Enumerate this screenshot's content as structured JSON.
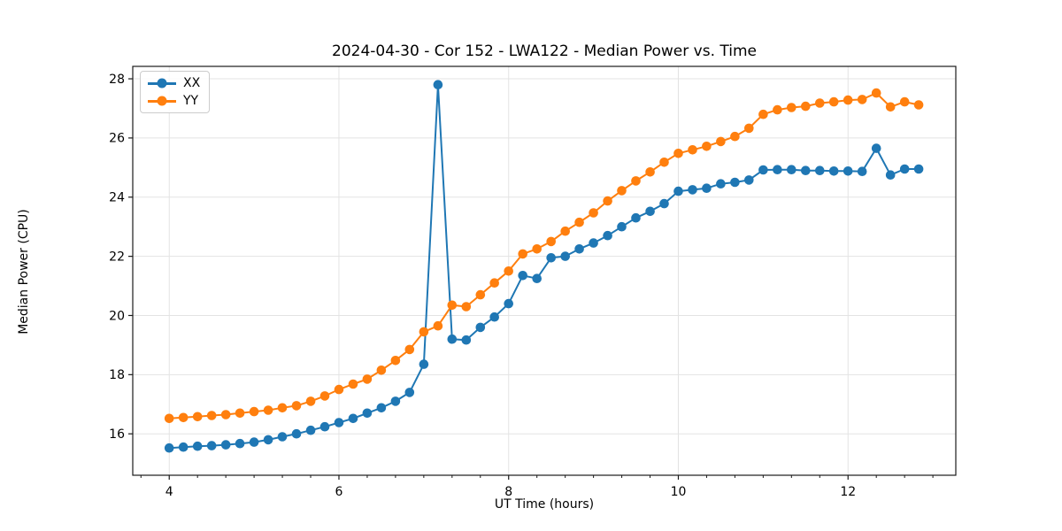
{
  "chart": {
    "title": "2024-04-30 - Cor 152 - LWA122 - Median Power vs. Time",
    "xlabel": "UT Time (hours)",
    "ylabel": "Median Power (CPU)"
  },
  "chart_data": {
    "type": "line",
    "title": "2024-04-30 - Cor 152 - LWA122 - Median Power vs. Time",
    "xlabel": "UT Time (hours)",
    "ylabel": "Median Power (CPU)",
    "xlim": [
      3.57,
      13.27
    ],
    "ylim": [
      14.6,
      28.42
    ],
    "x_ticks": [
      4,
      6,
      8,
      10,
      12
    ],
    "y_ticks": [
      16,
      18,
      20,
      22,
      24,
      26,
      28
    ],
    "x_minor_tick_step": 0.3333,
    "grid": true,
    "grid_color": "#e3e3e3",
    "axis_color": "#1a1a1a",
    "legend_position": "upper left",
    "marker": "o",
    "x": [
      4.0,
      4.167,
      4.333,
      4.5,
      4.667,
      4.833,
      5.0,
      5.167,
      5.333,
      5.5,
      5.667,
      5.833,
      6.0,
      6.167,
      6.333,
      6.5,
      6.667,
      6.833,
      7.0,
      7.167,
      7.333,
      7.5,
      7.667,
      7.833,
      8.0,
      8.167,
      8.333,
      8.5,
      8.667,
      8.833,
      9.0,
      9.167,
      9.333,
      9.5,
      9.667,
      9.833,
      10.0,
      10.167,
      10.333,
      10.5,
      10.667,
      10.833,
      11.0,
      11.167,
      11.333,
      11.5,
      11.667,
      11.833,
      12.0,
      12.167,
      12.333,
      12.5,
      12.667,
      12.833
    ],
    "series": [
      {
        "name": "XX",
        "color": "#1f77b4",
        "values": [
          15.52,
          15.55,
          15.58,
          15.6,
          15.63,
          15.67,
          15.72,
          15.8,
          15.9,
          16.0,
          16.12,
          16.24,
          16.38,
          16.52,
          16.7,
          16.88,
          17.1,
          17.4,
          18.35,
          27.8,
          19.2,
          19.17,
          19.6,
          19.95,
          20.4,
          21.35,
          21.25,
          21.95,
          22.0,
          22.25,
          22.45,
          22.7,
          23.0,
          23.3,
          23.52,
          23.78,
          24.2,
          24.25,
          24.3,
          24.45,
          24.5,
          24.58,
          24.92,
          24.93,
          24.93,
          24.9,
          24.9,
          24.88,
          24.88,
          24.87,
          25.65,
          24.75,
          24.95,
          24.95
        ]
      },
      {
        "name": "YY",
        "color": "#ff7f0e",
        "values": [
          16.52,
          16.55,
          16.58,
          16.62,
          16.65,
          16.7,
          16.75,
          16.8,
          16.88,
          16.95,
          17.1,
          17.28,
          17.5,
          17.68,
          17.85,
          18.15,
          18.48,
          18.85,
          19.45,
          19.65,
          20.35,
          20.3,
          20.7,
          21.1,
          21.5,
          22.08,
          22.25,
          22.5,
          22.85,
          23.15,
          23.47,
          23.87,
          24.22,
          24.55,
          24.85,
          25.18,
          25.48,
          25.6,
          25.72,
          25.88,
          26.05,
          26.33,
          26.8,
          26.95,
          27.03,
          27.07,
          27.18,
          27.22,
          27.28,
          27.3,
          27.52,
          27.05,
          27.22,
          27.12
        ]
      }
    ]
  }
}
